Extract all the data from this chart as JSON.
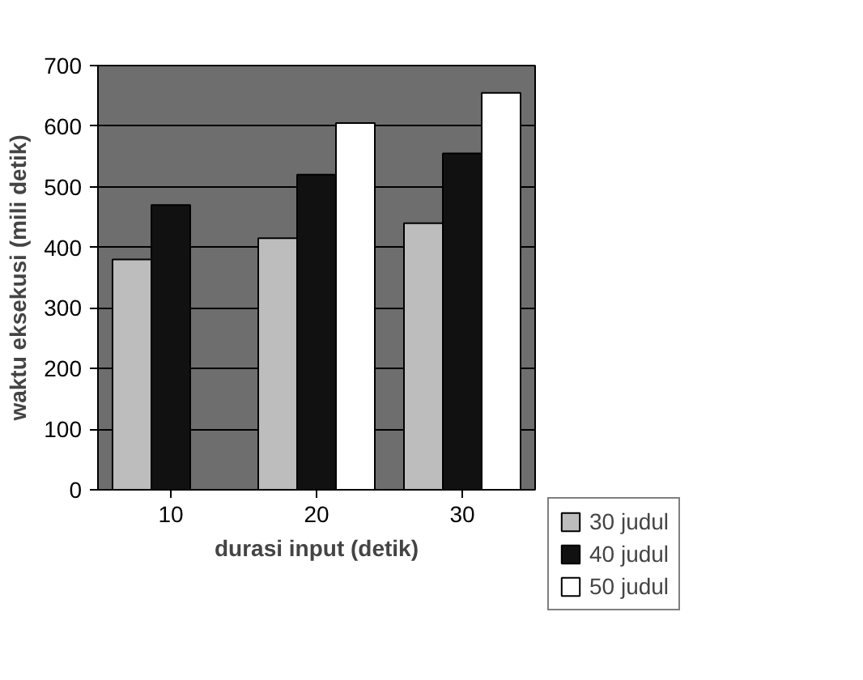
{
  "chart_data": {
    "type": "bar",
    "xlabel": "durasi input (detik)",
    "ylabel": "waktu eksekusi (mili detik)",
    "categories": [
      "10",
      "20",
      "30"
    ],
    "series": [
      {
        "name": "30 judul",
        "color": "#bdbdbd",
        "values": [
          380,
          415,
          440
        ]
      },
      {
        "name": "40 judul",
        "color": "#111111",
        "values": [
          470,
          520,
          555
        ]
      },
      {
        "name": "50 judul",
        "color": "#ffffff",
        "values": [
          null,
          605,
          655
        ]
      }
    ],
    "ylim": [
      0,
      700
    ],
    "yticks": [
      0,
      100,
      200,
      300,
      400,
      500,
      600,
      700
    ],
    "grid": "y",
    "legend": "right"
  }
}
